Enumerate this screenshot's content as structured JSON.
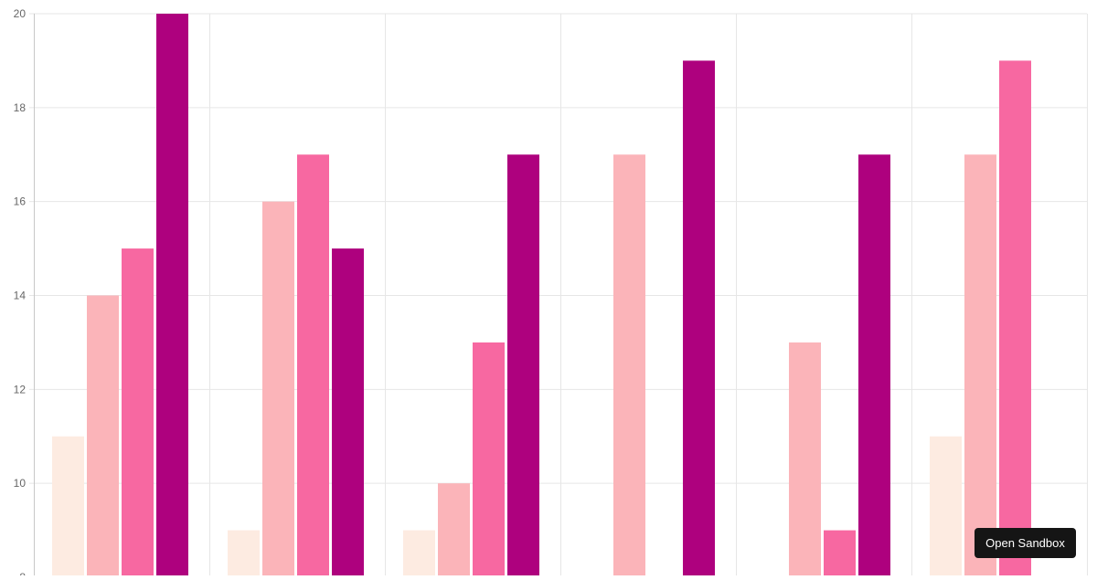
{
  "chart_data": {
    "type": "bar",
    "categories": [
      "",
      "",
      "",
      "",
      "",
      ""
    ],
    "series": [
      {
        "color": "#FDEBE1",
        "values": [
          11,
          9,
          9,
          7,
          7,
          11
        ]
      },
      {
        "color": "#FBB4B9",
        "values": [
          14,
          16,
          10,
          17,
          13,
          17
        ]
      },
      {
        "color": "#F768A1",
        "values": [
          15,
          17,
          13,
          7,
          9,
          19
        ]
      },
      {
        "color": "#AE017E",
        "values": [
          20,
          15,
          17,
          19,
          17,
          7
        ]
      }
    ],
    "ylim": [
      8,
      20
    ],
    "yticks": [
      8,
      10,
      12,
      14,
      16,
      18,
      20
    ],
    "ytick_labels": [
      "8",
      "10",
      "12",
      "14",
      "16",
      "18",
      "20"
    ],
    "grid": true,
    "title": "",
    "xlabel": "",
    "ylabel": ""
  },
  "sandbox_button": {
    "label": "Open Sandbox"
  }
}
